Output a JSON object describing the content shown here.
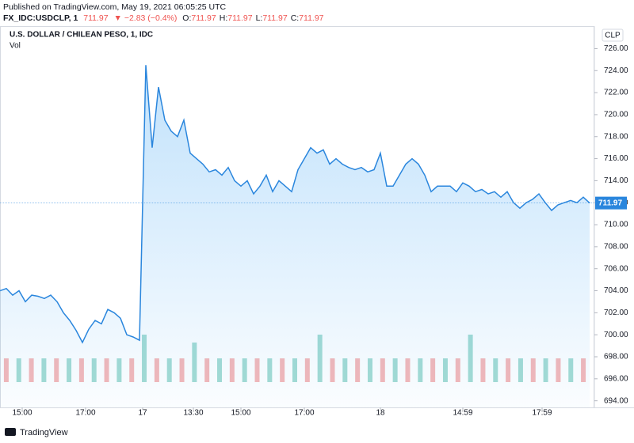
{
  "header": {
    "published": "Published on TradingView.com, May 19, 2021 06:05:25 UTC",
    "symbol": "FX_IDC:USDCLP, 1",
    "price": "711.97",
    "change": "▼ −2.83 (−0.4%)",
    "ohlc": [
      {
        "key": "O:",
        "value": "711.97"
      },
      {
        "key": "H:",
        "value": "711.97"
      },
      {
        "key": "L:",
        "value": "711.97"
      },
      {
        "key": "C:",
        "value": "711.97"
      }
    ]
  },
  "footer": {
    "brand": "TradingView"
  },
  "chart_data": {
    "type": "area",
    "title": "U.S. DOLLAR / CHILEAN PESO, 1, IDC",
    "currency": "CLP",
    "color": "#2a86dd",
    "values": [
      704.0,
      704.2,
      703.6,
      704.0,
      703.0,
      703.6,
      703.5,
      703.3,
      703.6,
      703.0,
      702.0,
      701.3,
      700.4,
      699.3,
      700.5,
      701.3,
      701.0,
      702.3,
      702.0,
      701.5,
      700.0,
      699.8,
      699.5,
      724.5,
      717.0,
      722.5,
      719.5,
      718.5,
      718.0,
      719.5,
      716.5,
      716.0,
      715.5,
      714.8,
      715.0,
      714.5,
      715.2,
      714.0,
      713.5,
      714.0,
      712.8,
      713.5,
      714.5,
      713.0,
      714.0,
      713.5,
      713.0,
      715.0,
      716.0,
      717.0,
      716.5,
      716.8,
      715.5,
      716.0,
      715.5,
      715.2,
      715.0,
      715.2,
      714.8,
      715.0,
      716.5,
      713.5,
      713.5,
      714.5,
      715.5,
      716.0,
      715.5,
      714.5,
      713.0,
      713.5,
      713.5,
      713.5,
      713.0,
      713.8,
      713.5,
      713.0,
      713.2,
      712.8,
      713.0,
      712.5,
      713.0,
      712.0,
      711.5,
      712.0,
      712.3,
      712.8,
      712.0,
      711.3,
      711.8,
      712.0,
      712.2,
      712.0,
      712.5,
      711.97
    ],
    "last_value_label": "711.97",
    "xlim": [
      0,
      93
    ],
    "xticks": [
      {
        "value": 3.5,
        "label": "15:00"
      },
      {
        "value": 13.5,
        "label": "17:00"
      },
      {
        "value": 22.5,
        "label": "17"
      },
      {
        "value": 30.5,
        "label": "13:30"
      },
      {
        "value": 38,
        "label": "15:00"
      },
      {
        "value": 48,
        "label": "17:00"
      },
      {
        "value": 60,
        "label": "18"
      },
      {
        "value": 73,
        "label": "14:59"
      },
      {
        "value": 85.5,
        "label": "17:59"
      }
    ],
    "ylim": [
      693.4,
      727.9
    ],
    "yticks": [
      {
        "value": 694,
        "label": "694.00"
      },
      {
        "value": 696,
        "label": "696.00"
      },
      {
        "value": 698,
        "label": "698.00"
      },
      {
        "value": 700,
        "label": "700.00"
      },
      {
        "value": 702,
        "label": "702.00"
      },
      {
        "value": 704,
        "label": "704.00"
      },
      {
        "value": 706,
        "label": "706.00"
      },
      {
        "value": 708,
        "label": "708.00"
      },
      {
        "value": 710,
        "label": "710.00"
      },
      {
        "value": 712,
        "label": "712.00"
      },
      {
        "value": 714,
        "label": "714.00"
      },
      {
        "value": 716,
        "label": "716.00"
      },
      {
        "value": 718,
        "label": "718.00"
      },
      {
        "value": 720,
        "label": "720.00"
      },
      {
        "value": 722,
        "label": "722.00"
      },
      {
        "value": 724,
        "label": "724.00"
      },
      {
        "value": 726,
        "label": "726.00"
      }
    ],
    "volume": {
      "name": "Vol",
      "colors": [
        "#f4a6a6",
        "#8fd3c8"
      ],
      "values": [
        3,
        3,
        3,
        3,
        3,
        3,
        3,
        3,
        3,
        3,
        3,
        6,
        3,
        3,
        3,
        5,
        3,
        3,
        3,
        3,
        3,
        3,
        3,
        3,
        3,
        6,
        3,
        3,
        3,
        3,
        3,
        3,
        3,
        3,
        3,
        3,
        3,
        6,
        3,
        3,
        3,
        3,
        3,
        3,
        3,
        3,
        3
      ]
    }
  }
}
